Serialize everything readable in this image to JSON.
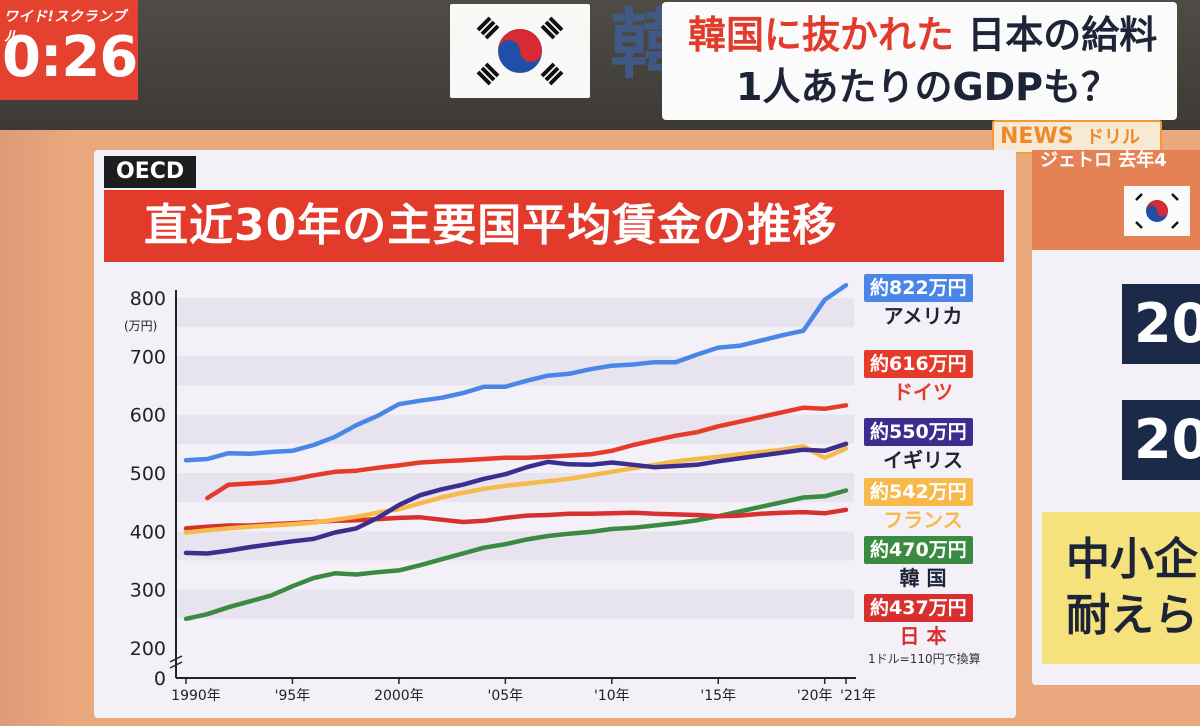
{
  "header": {
    "show_name": "ワイド!スクランブル",
    "clock": "0:26",
    "big_char": "韓",
    "headline_line1_red": "韓国に抜かれた",
    "headline_line1_black": "日本の給料",
    "headline_line2": "1人あたりのGDPも？",
    "news_main": "NEWS",
    "news_sub": "ドリル"
  },
  "chart_panel": {
    "source": "OECD",
    "note": "1ドル=110円で換算"
  },
  "right_panel": {
    "top_text": "ジェトロ 去年4",
    "box1": "20",
    "box2": "20",
    "yellow_line1": "中小企",
    "yellow_line2": "耐えら"
  },
  "colors": {
    "title_red": "#e23b2c",
    "usa": "#4a86e8",
    "germany": "#e43b2b",
    "uk": "#3b2e8f",
    "france": "#f7b94a",
    "korea": "#3b8a42",
    "japan": "#d7302e"
  },
  "chart_data": {
    "type": "line",
    "title": "直近30年の主要国平均賃金の推移",
    "ylabel": "(万円)",
    "ylim": [
      0,
      800
    ],
    "y_axis_break": true,
    "y_ticks": [
      "0",
      "200",
      "300",
      "400",
      "500",
      "600",
      "700",
      "800"
    ],
    "x_ticks": [
      "1990年",
      "'95年",
      "2000年",
      "'05年",
      "'10年",
      "'15年",
      "'20年",
      "'21年"
    ],
    "x": [
      1990,
      1991,
      1992,
      1993,
      1994,
      1995,
      1996,
      1997,
      1998,
      1999,
      2000,
      2001,
      2002,
      2003,
      2004,
      2005,
      2006,
      2007,
      2008,
      2009,
      2010,
      2011,
      2012,
      2013,
      2014,
      2015,
      2016,
      2017,
      2018,
      2019,
      2020,
      2021
    ],
    "series": [
      {
        "key": "usa",
        "legend_value": "約822万円",
        "legend_name": "アメリカ",
        "values": [
          522,
          524,
          534,
          533,
          536,
          538,
          548,
          562,
          582,
          598,
          618,
          624,
          629,
          637,
          648,
          648,
          658,
          667,
          670,
          678,
          684,
          686,
          690,
          690,
          703,
          715,
          718,
          727,
          736,
          744,
          797,
          822
        ]
      },
      {
        "key": "germany",
        "legend_value": "約616万円",
        "legend_name": "ドイツ",
        "values": [
          null,
          457,
          480,
          482,
          484,
          489,
          496,
          502,
          504,
          509,
          513,
          518,
          520,
          522,
          524,
          526,
          526,
          528,
          530,
          532,
          538,
          548,
          556,
          564,
          570,
          580,
          588,
          596,
          604,
          612,
          610,
          616
        ]
      },
      {
        "key": "uk",
        "legend_value": "約550万円",
        "legend_name": "イギリス",
        "values": [
          363,
          362,
          367,
          373,
          378,
          383,
          387,
          398,
          405,
          423,
          445,
          462,
          472,
          480,
          490,
          498,
          510,
          519,
          515,
          514,
          518,
          514,
          510,
          512,
          514,
          520,
          525,
          530,
          535,
          540,
          538,
          550
        ]
      },
      {
        "key": "france",
        "legend_value": "約542万円",
        "legend_name": "フランス",
        "values": [
          398,
          402,
          405,
          408,
          410,
          412,
          415,
          420,
          425,
          432,
          438,
          448,
          458,
          466,
          473,
          478,
          482,
          486,
          490,
          496,
          502,
          508,
          514,
          520,
          524,
          528,
          532,
          536,
          540,
          546,
          526,
          542
        ]
      },
      {
        "key": "korea",
        "legend_value": "約470万円",
        "legend_name": "韓 国",
        "values": [
          250,
          258,
          270,
          280,
          290,
          306,
          320,
          328,
          326,
          330,
          333,
          342,
          352,
          362,
          372,
          378,
          386,
          392,
          396,
          399,
          404,
          406,
          410,
          414,
          419,
          426,
          434,
          442,
          450,
          458,
          460,
          470
        ]
      },
      {
        "key": "japan",
        "legend_value": "約437万円",
        "legend_name": "日 本",
        "values": [
          405,
          408,
          410,
          410,
          412,
          414,
          416,
          418,
          419,
          421,
          423,
          424,
          420,
          416,
          418,
          423,
          427,
          428,
          430,
          430,
          431,
          432,
          430,
          429,
          428,
          426,
          427,
          430,
          432,
          433,
          431,
          437
        ]
      }
    ]
  }
}
